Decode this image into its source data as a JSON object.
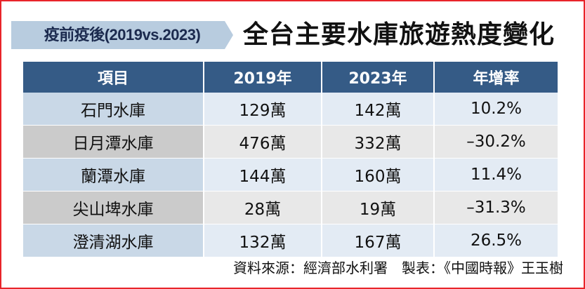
{
  "header": {
    "tag": "疫前疫後(2019vs.2023)",
    "title": "全台主要水庫旅遊熱度變化"
  },
  "table": {
    "columns": [
      "項目",
      "2019年",
      "2023年",
      "年增率"
    ],
    "rows": [
      {
        "name": "石門水庫",
        "y2019": "129萬",
        "y2023": "142萬",
        "growth": "10.2%"
      },
      {
        "name": "日月潭水庫",
        "y2019": "476萬",
        "y2023": "332萬",
        "growth": "–30.2%"
      },
      {
        "name": "蘭潭水庫",
        "y2019": "144萬",
        "y2023": "160萬",
        "growth": "11.4%"
      },
      {
        "name": "尖山埤水庫",
        "y2019": "28萬",
        "y2023": "19萬",
        "growth": "–31.3%"
      },
      {
        "name": "澄清湖水庫",
        "y2019": "132萬",
        "y2023": "167萬",
        "growth": "26.5%"
      }
    ]
  },
  "footer": {
    "source": "資料來源：經濟部水利署　製表：《中國時報》王玉樹"
  },
  "colors": {
    "border": "#e8242a",
    "header_bg": "#355b86",
    "tag_bg": "#b8ccdf",
    "row_blue_name": "#c9d8e7",
    "row_blue_value": "#e3ebf4",
    "row_gray_name": "#cbcbcb",
    "row_gray_value": "#e8e8e8"
  }
}
